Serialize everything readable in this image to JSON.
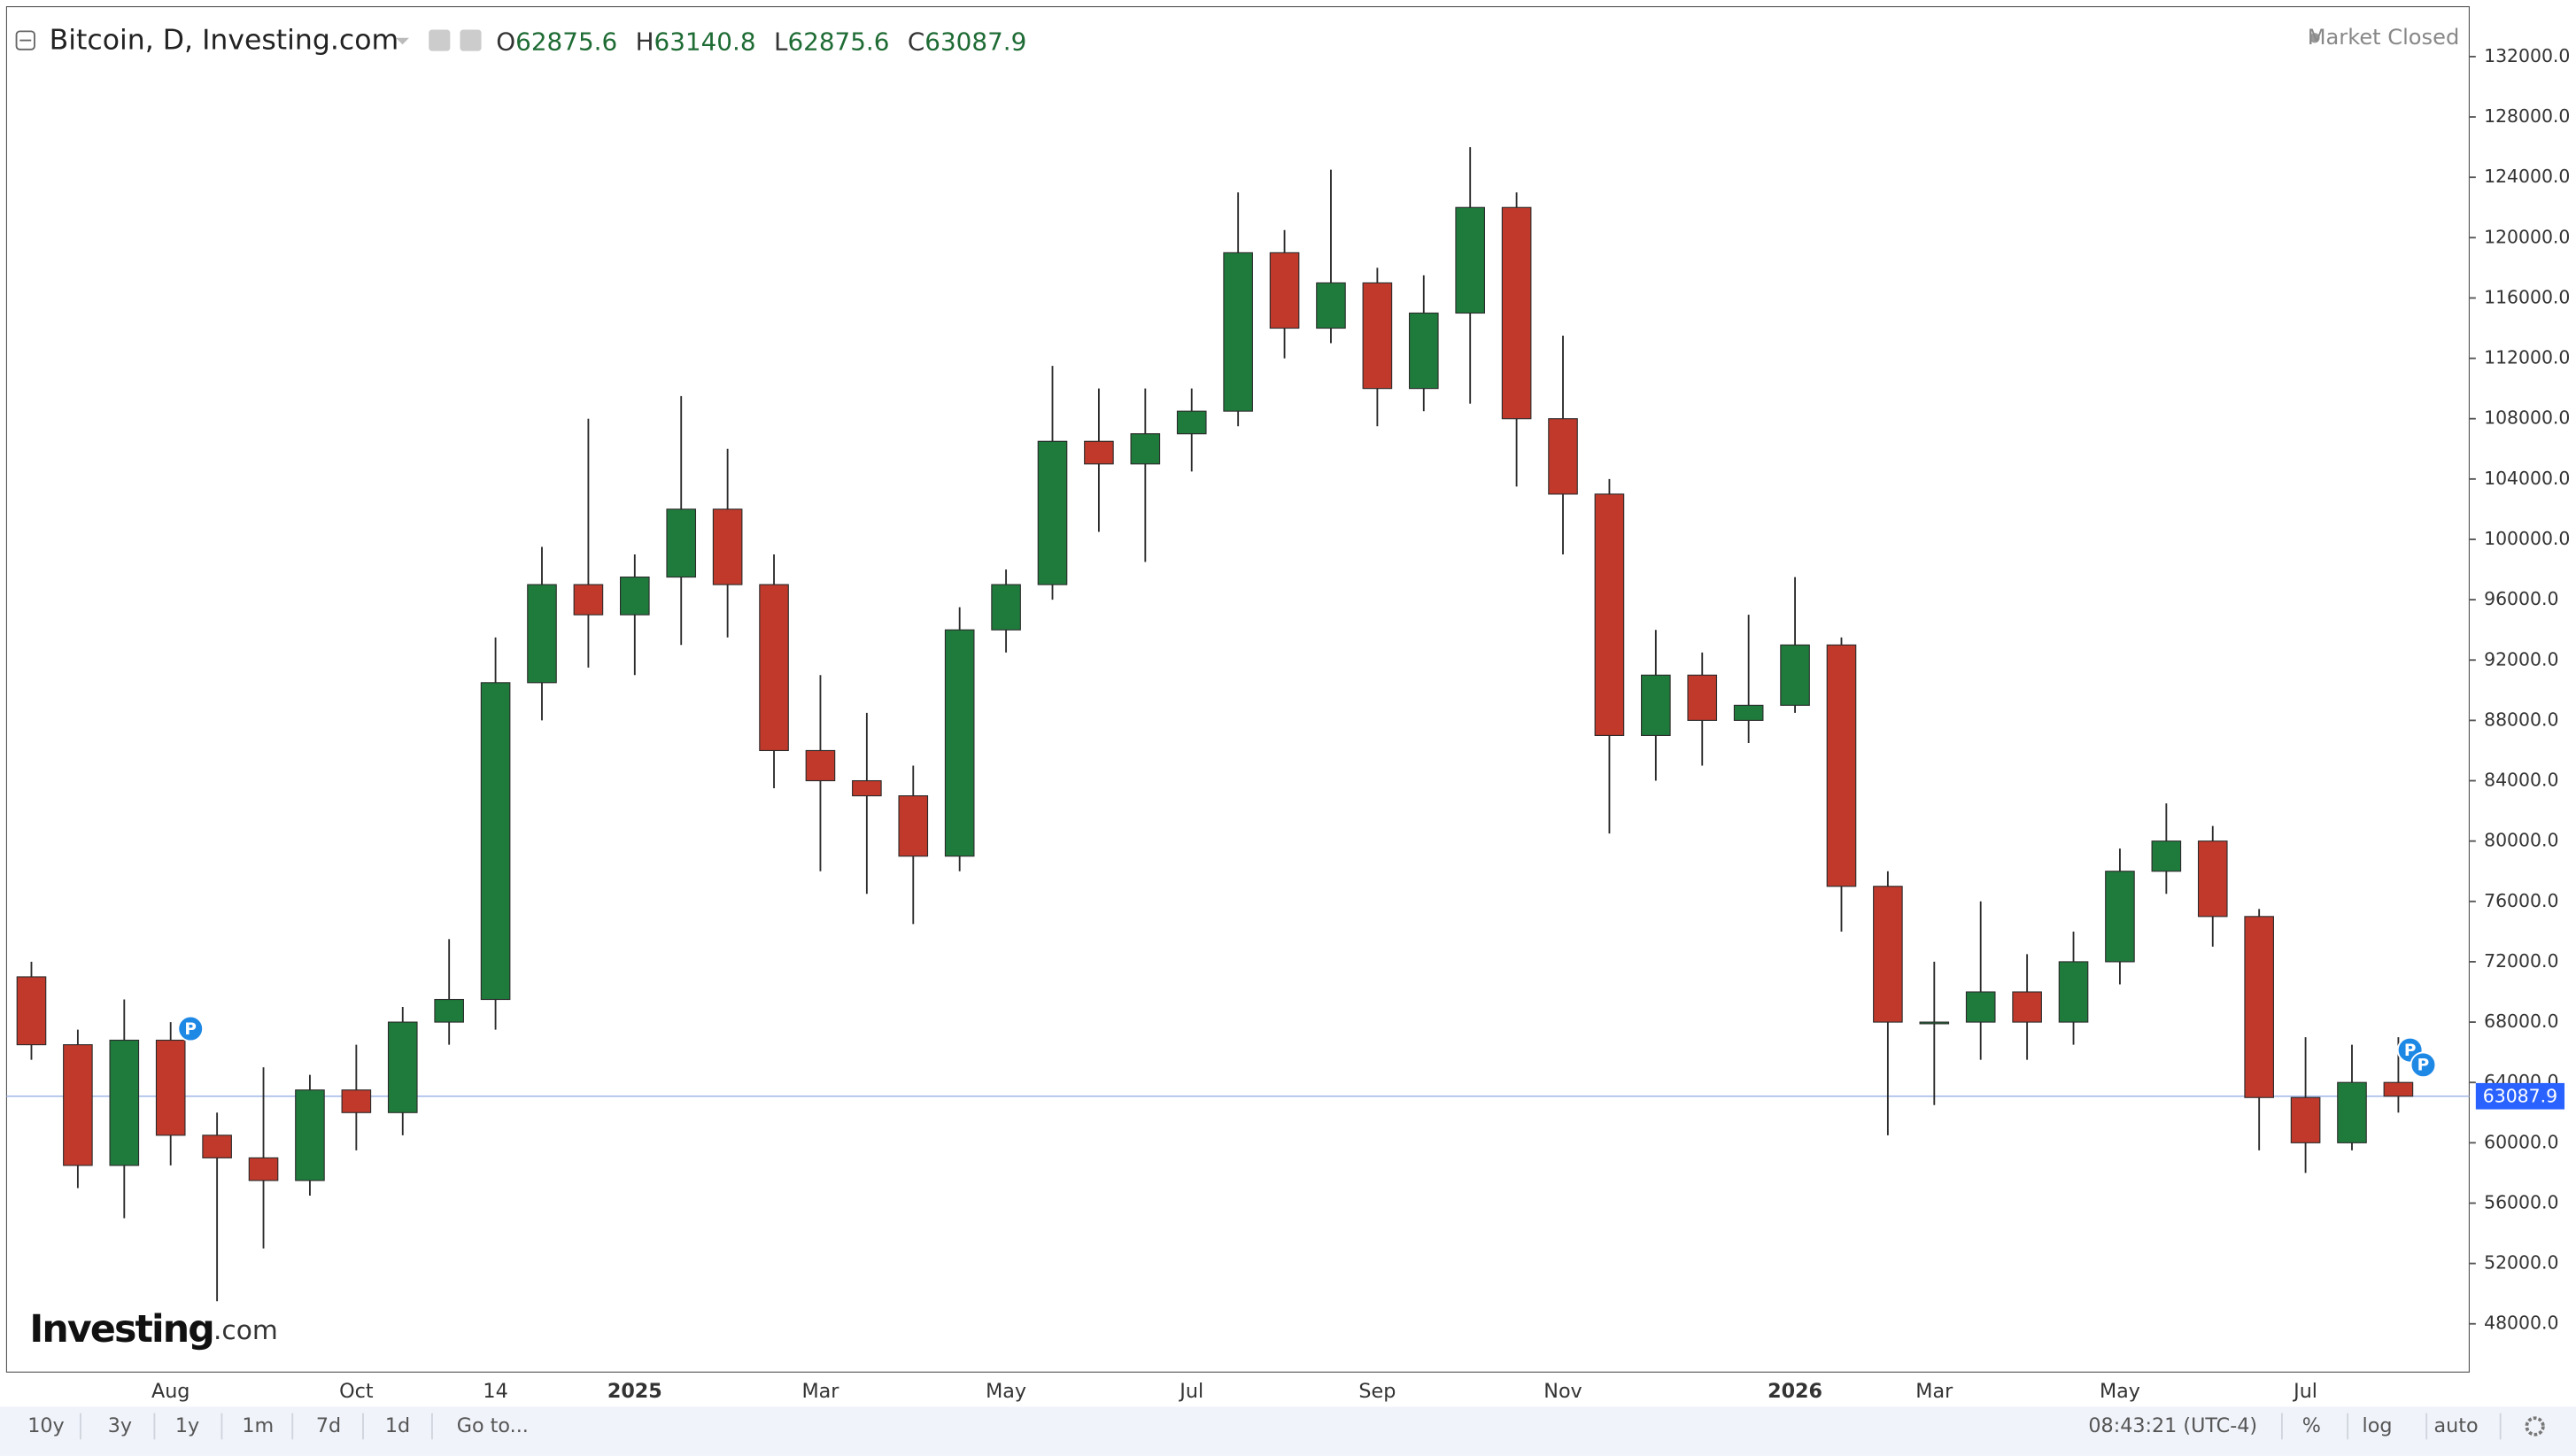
{
  "header": {
    "title": "Bitcoin, D, Investing.com",
    "ohlc": [
      {
        "label": "O",
        "value": 62875.6
      },
      {
        "label": "H",
        "value": 63140.8
      },
      {
        "label": "L",
        "value": 62875.6
      },
      {
        "label": "C",
        "value": 63087.9
      }
    ],
    "status": "Market Closed"
  },
  "chart_data": {
    "type": "candlestick",
    "categories": [
      null,
      null,
      null,
      "Aug",
      null,
      null,
      null,
      "Oct",
      null,
      null,
      "14",
      null,
      null,
      "2025",
      null,
      null,
      null,
      "Mar",
      null,
      null,
      null,
      "May",
      null,
      null,
      null,
      "Jul",
      null,
      null,
      null,
      "Sep",
      null,
      null,
      null,
      "Nov",
      null,
      null,
      null,
      null,
      "2026",
      null,
      null,
      "Mar",
      null,
      null,
      null,
      "May",
      null,
      null,
      null,
      "Jul",
      null,
      null
    ],
    "open": [
      71000,
      66500,
      58500,
      66800,
      60500,
      59000,
      57500,
      63500,
      62000,
      68000,
      69500,
      90500,
      97000,
      95000,
      97500,
      102000,
      97000,
      86000,
      84000,
      83000,
      79000,
      94000,
      97000,
      106500,
      105000,
      107000,
      108500,
      119000,
      114000,
      117000,
      110000,
      115000,
      122000,
      108000,
      103000,
      87000,
      91000,
      88000,
      89000,
      93000,
      77000,
      68000,
      68000,
      70000,
      68000,
      72000,
      78000,
      80000,
      75000,
      63000,
      60000,
      64000
    ],
    "high": [
      72000,
      67500,
      69500,
      68000,
      62000,
      65000,
      64500,
      66500,
      69000,
      73500,
      93500,
      99500,
      108000,
      99000,
      109500,
      106000,
      99000,
      91000,
      88500,
      85000,
      95500,
      98000,
      111500,
      110000,
      110000,
      110000,
      123000,
      120500,
      124500,
      118000,
      117500,
      126000,
      123000,
      113500,
      104000,
      94000,
      92500,
      95000,
      97500,
      93500,
      78000,
      72000,
      76000,
      72500,
      74000,
      79500,
      82500,
      81000,
      75500,
      67000,
      66500,
      67000
    ],
    "low": [
      65500,
      57000,
      55000,
      58500,
      49500,
      53000,
      56500,
      59500,
      60500,
      66500,
      67500,
      88000,
      91500,
      91000,
      93000,
      93500,
      83500,
      78000,
      76500,
      74500,
      78000,
      92500,
      96000,
      100500,
      98500,
      104500,
      107500,
      112000,
      113000,
      107500,
      108500,
      109000,
      103500,
      99000,
      80500,
      84000,
      85000,
      86500,
      88500,
      74000,
      60500,
      62500,
      65500,
      65500,
      66500,
      70500,
      76500,
      73000,
      59500,
      58000,
      59500,
      62000
    ],
    "close": [
      66500,
      58500,
      66800,
      60500,
      59000,
      57500,
      63500,
      62000,
      68000,
      69500,
      90500,
      97000,
      95000,
      97500,
      102000,
      97000,
      86000,
      84000,
      83000,
      79000,
      94000,
      97000,
      106500,
      105000,
      107000,
      108500,
      119000,
      114000,
      117000,
      110000,
      115000,
      122000,
      108000,
      103000,
      87000,
      91000,
      88000,
      89000,
      93000,
      77000,
      68000,
      68000,
      70000,
      68000,
      72000,
      78000,
      80000,
      75000,
      63000,
      60000,
      64000,
      63087.9
    ],
    "up_color": "#1e7b3c",
    "down_color": "#c0392b",
    "wick_color": "#2b2b2b",
    "ylim": [
      44800,
      135200
    ],
    "yticks": [
      {
        "value": 48000,
        "label": "48000.0"
      },
      {
        "value": 52000,
        "label": "52000.0"
      },
      {
        "value": 56000,
        "label": "56000.0"
      },
      {
        "value": 60000,
        "label": "60000.0"
      },
      {
        "value": 64000,
        "label": "64000.0"
      },
      {
        "value": 68000,
        "label": "68000.0"
      },
      {
        "value": 72000,
        "label": "72000.0"
      },
      {
        "value": 76000,
        "label": "76000.0"
      },
      {
        "value": 80000,
        "label": "80000.0"
      },
      {
        "value": 84000,
        "label": "84000.0"
      },
      {
        "value": 88000,
        "label": "88000.0"
      },
      {
        "value": 92000,
        "label": "92000.0"
      },
      {
        "value": 96000,
        "label": "96000.0"
      },
      {
        "value": 100000,
        "label": "100000.0"
      },
      {
        "value": 104000,
        "label": "104000.0"
      },
      {
        "value": 108000,
        "label": "108000.0"
      },
      {
        "value": 112000,
        "label": "112000.0"
      },
      {
        "value": 116000,
        "label": "116000.0"
      },
      {
        "value": 120000,
        "label": "120000.0"
      },
      {
        "value": 124000,
        "label": "124000.0"
      },
      {
        "value": 128000,
        "label": "128000.0"
      },
      {
        "value": 132000,
        "label": "132000.0"
      }
    ],
    "grid": false,
    "last_price": 63087.9,
    "last_price_color": "#2962ff",
    "annotations": [
      "P",
      "P",
      "P"
    ]
  },
  "logo": {
    "name": "Investing",
    "suffix": ".com"
  },
  "toolbar": {
    "ranges": [
      "10y",
      "3y",
      "1y",
      "1m",
      "7d",
      "1d"
    ],
    "goto": "Go to...",
    "time": "08:43:21 (UTC-4)",
    "options": [
      "%",
      "log",
      "auto"
    ]
  }
}
